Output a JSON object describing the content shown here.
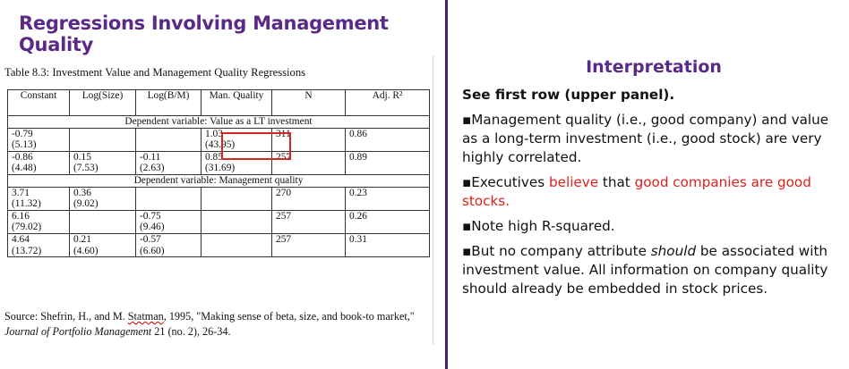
{
  "left_title": "Regressions Involving Management Quality",
  "right_title": "Interpretation",
  "table": {
    "caption": "Table 8.3: Investment Value and Management Quality Regressions",
    "headers": [
      "Constant",
      "Log(Size)",
      "Log(B/M)",
      "Man. Quality",
      "N",
      "Adj. R²"
    ],
    "panel1_label": "Dependent variable: Value as a LT investment",
    "panel1_rows": [
      [
        "-0.79\n(5.13)",
        "",
        "",
        "1.03\n(43.95)",
        "311",
        "0.86"
      ],
      [
        "-0.86\n(4.48)",
        "0.15\n(7.53)",
        "-0.11\n(2.63)",
        "0.85\n(31.69)",
        "257",
        "0.89"
      ]
    ],
    "panel2_label": "Dependent variable: Management quality",
    "panel2_rows": [
      [
        "3.71\n(11.32)",
        "0.36\n(9.02)",
        "",
        "",
        "270",
        "0.23"
      ],
      [
        "6.16\n(79.02)",
        "",
        "-0.75\n(9.46)",
        "",
        "257",
        "0.26"
      ],
      [
        "4.64\n(13.72)",
        "0.21\n(4.60)",
        "-0.57\n(6.60)",
        "",
        "257",
        "0.31"
      ]
    ],
    "source_part1": "Source: Shefrin, H., and M. ",
    "source_statman": "Statman",
    "source_part2": ", 1995, \"Making sense of beta, size, and book-to market,\" ",
    "source_journal": "Journal of Portfolio Management",
    "source_part3": " 21 (no. 2), 26-34."
  },
  "interpretation": {
    "heading": "See first row (upper panel).",
    "bullet1": "▪Management quality (i.e., good company) and value as a long-term investment (i.e., good stock) are very highly correlated.",
    "bullet2_a": "▪Executives ",
    "bullet2_believe": "believe",
    "bullet2_b": " that ",
    "bullet2_red": "good companies are good stocks.",
    "bullet3": "▪Note high R-squared.",
    "bullet4_a": "▪But no company attribute ",
    "bullet4_should": "should",
    "bullet4_b": " be associated with investment value. All information on company quality should already be embedded in stock prices."
  },
  "colors": {
    "title": "#5b2a86",
    "divider": "#4a1f73",
    "highlight": "#d4281f",
    "emphasis": "#e0201a"
  }
}
